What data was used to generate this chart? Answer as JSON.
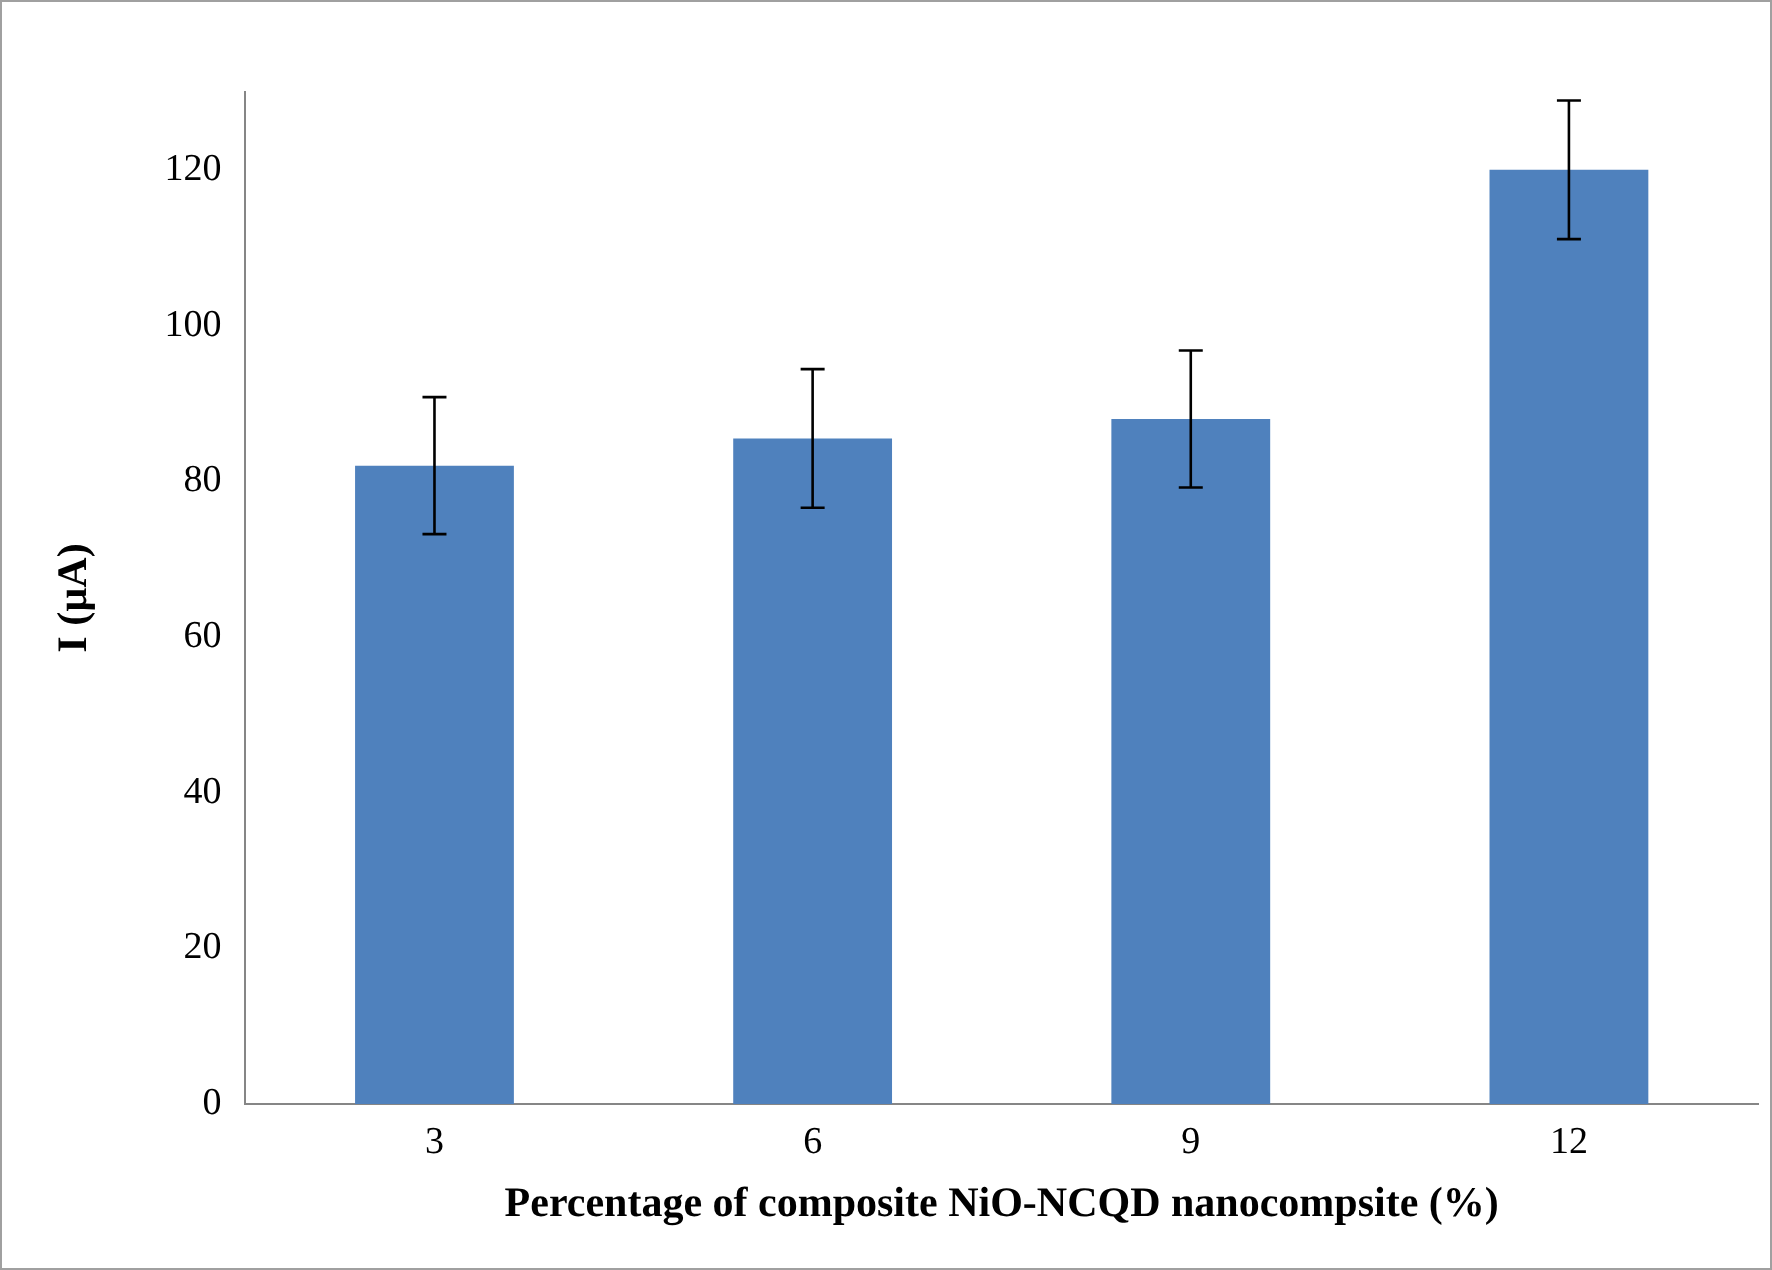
{
  "chart_data": {
    "type": "bar",
    "xlabel": "Percentage of composite NiO-NCQD nanocompsite (%)",
    "ylabel": "I (µA)",
    "categories": [
      "3",
      "6",
      "9",
      "12"
    ],
    "values": [
      82,
      85.5,
      88,
      120
    ],
    "errors": [
      8.8,
      8.9,
      8.8,
      8.9
    ],
    "color": "#4f81bd",
    "ylim": [
      0,
      130
    ],
    "yticks": [
      0,
      20,
      40,
      60,
      80,
      100,
      120
    ],
    "grid": false,
    "legend": false
  }
}
